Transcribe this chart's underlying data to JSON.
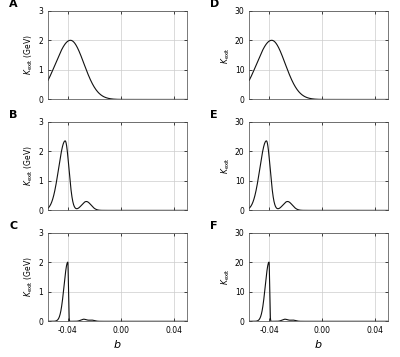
{
  "panels_left": [
    "A",
    "B",
    "C"
  ],
  "panels_right": [
    "D",
    "E",
    "F"
  ],
  "xlabel": "b",
  "xlim": [
    -0.055,
    0.05
  ],
  "xticks": [
    -0.04,
    0.0,
    0.04
  ],
  "xticklabels": [
    "-0.04",
    "0.00",
    "0.04"
  ],
  "ylim_left": [
    0,
    3
  ],
  "yticks_left": [
    0,
    1,
    2,
    3
  ],
  "yticklabels_left": [
    "0",
    "1",
    "2",
    "3"
  ],
  "ylim_right": [
    0,
    30
  ],
  "yticks_right": [
    0,
    10,
    20,
    30
  ],
  "yticklabels_right": [
    "0",
    "10",
    "20",
    "30"
  ],
  "background_color": "#ffffff",
  "line_color": "#111111",
  "grid_color": "#cccccc",
  "fig_facecolor": "#ffffff"
}
